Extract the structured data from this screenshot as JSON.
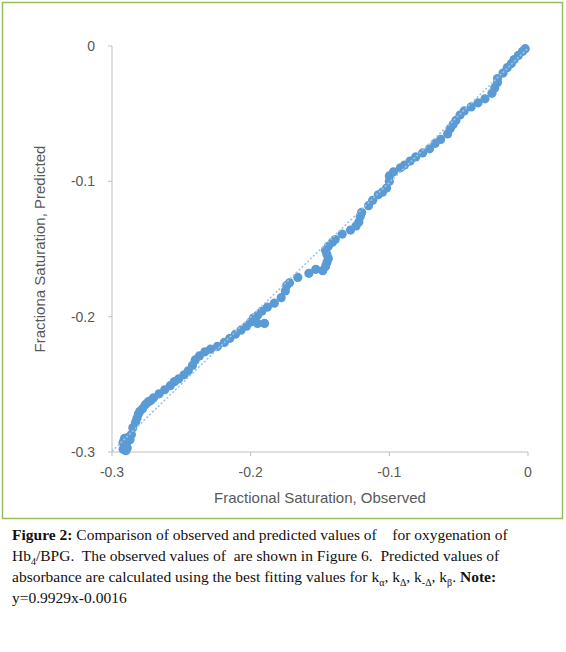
{
  "chart_data": {
    "type": "scatter",
    "x_label": "Fractional Saturation, Observed",
    "y_label": "Fractiona Saturation, Predicted",
    "xlim": [
      -0.3,
      0
    ],
    "ylim": [
      -0.3,
      0
    ],
    "xticks": [
      -0.3,
      -0.2,
      -0.1,
      0
    ],
    "yticks": [
      0,
      -0.1,
      -0.2,
      -0.3
    ],
    "grid": false,
    "color": "#5b9bd5",
    "marker": "circle",
    "trendline": {
      "slope": 0.9929,
      "intercept": -0.0016,
      "color": "#9dc3e6",
      "line_style": "dotted"
    },
    "x": [
      -0.292,
      -0.291,
      -0.29,
      -0.289,
      -0.291,
      -0.288,
      -0.287,
      -0.289,
      -0.286,
      -0.292,
      -0.29,
      -0.285,
      -0.283,
      -0.282,
      -0.281,
      -0.28,
      -0.278,
      -0.276,
      -0.274,
      -0.272,
      -0.27,
      -0.266,
      -0.262,
      -0.258,
      -0.255,
      -0.252,
      -0.248,
      -0.245,
      -0.242,
      -0.24,
      -0.237,
      -0.233,
      -0.229,
      -0.224,
      -0.219,
      -0.215,
      -0.211,
      -0.207,
      -0.203,
      -0.2,
      -0.198,
      -0.195,
      -0.192,
      -0.188,
      -0.195,
      -0.19,
      -0.183,
      -0.178,
      -0.175,
      -0.174,
      -0.172,
      -0.166,
      -0.158,
      -0.153,
      -0.148,
      -0.146,
      -0.145,
      -0.144,
      -0.145,
      -0.146,
      -0.144,
      -0.141,
      -0.139,
      -0.134,
      -0.128,
      -0.124,
      -0.122,
      -0.121,
      -0.12,
      -0.115,
      -0.112,
      -0.108,
      -0.105,
      -0.102,
      -0.1,
      -0.1,
      -0.097,
      -0.092,
      -0.089,
      -0.085,
      -0.081,
      -0.076,
      -0.071,
      -0.067,
      -0.063,
      -0.058,
      -0.056,
      -0.054,
      -0.052,
      -0.049,
      -0.046,
      -0.041,
      -0.036,
      -0.031,
      -0.026,
      -0.024,
      -0.022,
      -0.022,
      -0.018,
      -0.015,
      -0.012,
      -0.01,
      -0.007,
      -0.004,
      -0.002
    ],
    "values": [
      -0.298,
      -0.296,
      -0.294,
      -0.292,
      -0.29,
      -0.289,
      -0.291,
      -0.297,
      -0.287,
      -0.293,
      -0.299,
      -0.282,
      -0.278,
      -0.275,
      -0.272,
      -0.27,
      -0.268,
      -0.265,
      -0.263,
      -0.262,
      -0.26,
      -0.257,
      -0.254,
      -0.251,
      -0.248,
      -0.246,
      -0.243,
      -0.24,
      -0.236,
      -0.232,
      -0.229,
      -0.226,
      -0.224,
      -0.222,
      -0.219,
      -0.216,
      -0.213,
      -0.21,
      -0.207,
      -0.204,
      -0.201,
      -0.199,
      -0.196,
      -0.193,
      -0.205,
      -0.205,
      -0.19,
      -0.186,
      -0.181,
      -0.177,
      -0.175,
      -0.171,
      -0.168,
      -0.165,
      -0.166,
      -0.163,
      -0.16,
      -0.157,
      -0.154,
      -0.151,
      -0.148,
      -0.145,
      -0.143,
      -0.139,
      -0.136,
      -0.133,
      -0.13,
      -0.126,
      -0.123,
      -0.118,
      -0.114,
      -0.11,
      -0.108,
      -0.105,
      -0.1,
      -0.096,
      -0.093,
      -0.09,
      -0.088,
      -0.085,
      -0.082,
      -0.079,
      -0.076,
      -0.072,
      -0.069,
      -0.065,
      -0.061,
      -0.058,
      -0.055,
      -0.051,
      -0.048,
      -0.045,
      -0.042,
      -0.039,
      -0.035,
      -0.031,
      -0.027,
      -0.024,
      -0.02,
      -0.016,
      -0.013,
      -0.01,
      -0.007,
      -0.004,
      -0.002
    ],
    "caption": [
      {
        "text": "Figure 2:",
        "format": "bold"
      },
      {
        "text": " Comparison of observed and predicted values of    for oxygenation of Hb",
        "format": "plain"
      },
      {
        "text": "4",
        "format": "sub"
      },
      {
        "text": "/BPG.  The observed values of  are shown in Figure 6.  Predicted values of absorbance are calculated using the best fitting values for k",
        "format": "plain"
      },
      {
        "text": "α",
        "format": "sub"
      },
      {
        "text": ", k",
        "format": "plain"
      },
      {
        "text": "Δ",
        "format": "sub"
      },
      {
        "text": ", k",
        "format": "plain"
      },
      {
        "text": "-Δ",
        "format": "sub"
      },
      {
        "text": ", k",
        "format": "plain"
      },
      {
        "text": "β",
        "format": "sub"
      },
      {
        "text": ". ",
        "format": "plain"
      },
      {
        "text": "Note:",
        "format": "bold"
      },
      {
        "text": " y=0.9929x-0.0016",
        "format": "plain"
      }
    ]
  }
}
